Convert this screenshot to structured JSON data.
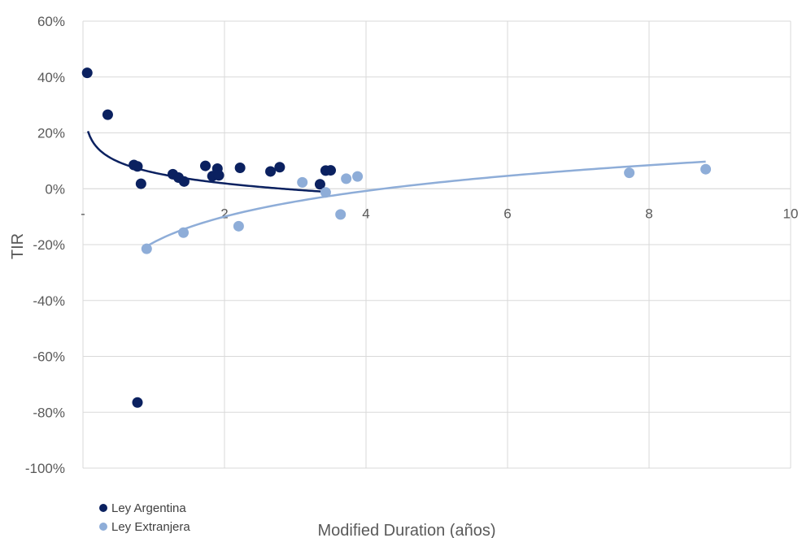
{
  "chart_data": {
    "type": "scatter",
    "title": "",
    "xlabel": "Modified Duration (años)",
    "ylabel": "TIR",
    "xlim": [
      0,
      10
    ],
    "ylim": [
      -100,
      60
    ],
    "x_ticks": [
      {
        "value": 0,
        "label": "-"
      },
      {
        "value": 2,
        "label": "2"
      },
      {
        "value": 4,
        "label": "4"
      },
      {
        "value": 6,
        "label": "6"
      },
      {
        "value": 8,
        "label": "8"
      },
      {
        "value": 10,
        "label": "10"
      }
    ],
    "y_ticks": [
      {
        "value": 60,
        "label": "60%"
      },
      {
        "value": 40,
        "label": "40%"
      },
      {
        "value": 20,
        "label": "20%"
      },
      {
        "value": 0,
        "label": "0%"
      },
      {
        "value": -20,
        "label": "-20%"
      },
      {
        "value": -40,
        "label": "-40%"
      },
      {
        "value": -60,
        "label": "-60%"
      },
      {
        "value": -80,
        "label": "-80%"
      },
      {
        "value": -100,
        "label": "-100%"
      }
    ],
    "grid": true,
    "legend_position": "bottom-left",
    "series": [
      {
        "name": "Ley Argentina",
        "color": "#0b2160",
        "points": [
          [
            0.06,
            41.5
          ],
          [
            0.35,
            26.5
          ],
          [
            0.72,
            8.5
          ],
          [
            0.77,
            8.0
          ],
          [
            0.82,
            1.8
          ],
          [
            1.27,
            5.2
          ],
          [
            1.35,
            4.0
          ],
          [
            1.43,
            2.6
          ],
          [
            1.73,
            8.2
          ],
          [
            1.83,
            4.5
          ],
          [
            1.9,
            7.2
          ],
          [
            1.92,
            4.8
          ],
          [
            2.22,
            7.5
          ],
          [
            2.65,
            6.2
          ],
          [
            2.78,
            7.7
          ],
          [
            3.35,
            1.6
          ],
          [
            3.43,
            6.5
          ],
          [
            3.5,
            6.6
          ],
          [
            0.77,
            -76.5
          ]
        ],
        "trend": {
          "type": "log",
          "x_from": 0.07,
          "x_to": 3.5
        }
      },
      {
        "name": "Ley Extranjera",
        "color": "#8eadd8",
        "points": [
          [
            0.9,
            -21.5
          ],
          [
            1.42,
            -15.7
          ],
          [
            2.2,
            -13.4
          ],
          [
            3.1,
            2.3
          ],
          [
            3.43,
            -1.3
          ],
          [
            3.64,
            -9.2
          ],
          [
            3.72,
            3.6
          ],
          [
            3.88,
            4.4
          ],
          [
            7.72,
            5.7
          ],
          [
            8.8,
            7.0
          ]
        ],
        "trend": {
          "type": "log",
          "x_from": 0.9,
          "x_to": 8.8
        }
      }
    ]
  }
}
